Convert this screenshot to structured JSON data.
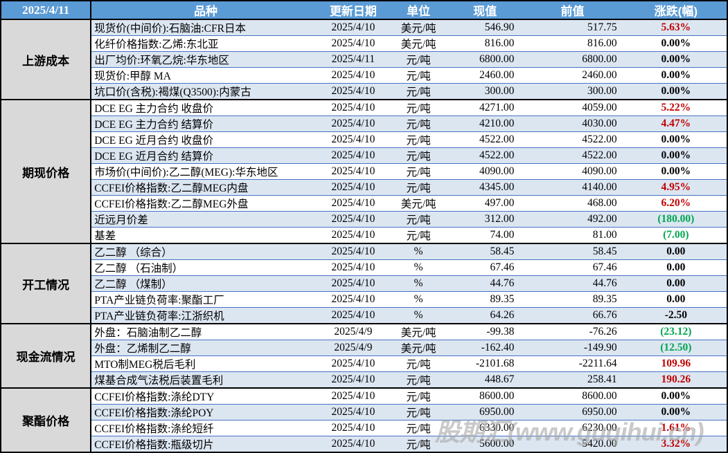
{
  "header": {
    "date": "2025/4/11",
    "columns": [
      "品种",
      "更新日期",
      "单位",
      "现值",
      "前值",
      "涨跌(幅)"
    ]
  },
  "groups": [
    {
      "label": "上游成本",
      "rows": [
        {
          "name": "现货价(中间价):石脑油:CFR日本",
          "date": "2025/4/10",
          "unit": "美元/吨",
          "cur": "546.90",
          "prev": "517.75",
          "chg": "5.63%",
          "chg_color": "red"
        },
        {
          "name": "化纤价格指数:乙烯:东北亚",
          "date": "2025/4/10",
          "unit": "美元/吨",
          "cur": "816.00",
          "prev": "816.00",
          "chg": "0.00%",
          "chg_color": "black"
        },
        {
          "name": "出厂均价:环氧乙烷:华东地区",
          "date": "2025/4/11",
          "unit": "元/吨",
          "cur": "6800.00",
          "prev": "6800.00",
          "chg": "0.00%",
          "chg_color": "black"
        },
        {
          "name": "现货价:甲醇 MA",
          "date": "2025/4/10",
          "unit": "元/吨",
          "cur": "2460.00",
          "prev": "2460.00",
          "chg": "0.00%",
          "chg_color": "black"
        },
        {
          "name": "坑口价(含税):褐煤(Q3500):内蒙古",
          "date": "2025/4/10",
          "unit": "元/吨",
          "cur": "300.00",
          "prev": "300.00",
          "chg": "0.00%",
          "chg_color": "black"
        }
      ]
    },
    {
      "label": "期现价格",
      "rows": [
        {
          "name": "DCE EG 主力合约 收盘价",
          "date": "2025/4/10",
          "unit": "元/吨",
          "cur": "4271.00",
          "prev": "4059.00",
          "chg": "5.22%",
          "chg_color": "red"
        },
        {
          "name": "DCE EG 主力合约 结算价",
          "date": "2025/4/10",
          "unit": "元/吨",
          "cur": "4210.00",
          "prev": "4030.00",
          "chg": "4.47%",
          "chg_color": "red"
        },
        {
          "name": "DCE EG 近月合约 收盘价",
          "date": "2025/4/10",
          "unit": "元/吨",
          "cur": "4522.00",
          "prev": "4522.00",
          "chg": "0.00%",
          "chg_color": "black"
        },
        {
          "name": "DCE EG 近月合约 结算价",
          "date": "2025/4/10",
          "unit": "元/吨",
          "cur": "4522.00",
          "prev": "4522.00",
          "chg": "0.00%",
          "chg_color": "black"
        },
        {
          "name": "市场价(中间价):乙二醇(MEG):华东地区",
          "date": "2025/4/10",
          "unit": "元/吨",
          "cur": "4090.00",
          "prev": "4090.00",
          "chg": "0.00%",
          "chg_color": "black"
        },
        {
          "name": "CCFEI价格指数:乙二醇MEG内盘",
          "date": "2025/4/10",
          "unit": "元/吨",
          "cur": "4345.00",
          "prev": "4140.00",
          "chg": "4.95%",
          "chg_color": "red"
        },
        {
          "name": "CCFEI价格指数:乙二醇MEG外盘",
          "date": "2025/4/10",
          "unit": "美元/吨",
          "cur": "497.00",
          "prev": "468.00",
          "chg": "6.20%",
          "chg_color": "red"
        },
        {
          "name": "近远月价差",
          "date": "2025/4/10",
          "unit": "元/吨",
          "cur": "312.00",
          "prev": "492.00",
          "chg": "(180.00)",
          "chg_color": "green"
        },
        {
          "name": "基差",
          "date": "2025/4/10",
          "unit": "元/吨",
          "cur": "74.00",
          "prev": "81.00",
          "chg": "(7.00)",
          "chg_color": "green"
        }
      ]
    },
    {
      "label": "开工情况",
      "rows": [
        {
          "name": "乙二醇 （综合）",
          "date": "2025/4/10",
          "unit": "%",
          "cur": "58.45",
          "prev": "58.45",
          "chg": "0.00",
          "chg_color": "black"
        },
        {
          "name": "乙二醇 （石油制）",
          "date": "2025/4/10",
          "unit": "%",
          "cur": "67.46",
          "prev": "67.46",
          "chg": "0.00",
          "chg_color": "black"
        },
        {
          "name": "乙二醇 （煤制）",
          "date": "2025/4/10",
          "unit": "%",
          "cur": "44.76",
          "prev": "44.76",
          "chg": "0.00",
          "chg_color": "black"
        },
        {
          "name": "PTA产业链负荷率:聚酯工厂",
          "date": "2025/4/10",
          "unit": "%",
          "cur": "89.35",
          "prev": "89.35",
          "chg": "0.00",
          "chg_color": "black"
        },
        {
          "name": "PTA产业链负荷率:江浙织机",
          "date": "2025/4/10",
          "unit": "%",
          "cur": "64.26",
          "prev": "66.76",
          "chg": "-2.50",
          "chg_color": "black"
        }
      ]
    },
    {
      "label": "现金流情况",
      "rows": [
        {
          "name": "外盘：石脑油制乙二醇",
          "date": "2025/4/9",
          "unit": "美元/吨",
          "cur": "-99.38",
          "prev": "-76.26",
          "chg": "(23.12)",
          "chg_color": "green"
        },
        {
          "name": "外盘：乙烯制乙二醇",
          "date": "2025/4/9",
          "unit": "美元/吨",
          "cur": "-162.40",
          "prev": "-149.90",
          "chg": "(12.50)",
          "chg_color": "green"
        },
        {
          "name": "MTO制MEG税后毛利",
          "date": "2025/4/10",
          "unit": "元/吨",
          "cur": "-2101.68",
          "prev": "-2211.64",
          "chg": "109.96",
          "chg_color": "red"
        },
        {
          "name": "煤基合成气法税后装置毛利",
          "date": "2025/4/10",
          "unit": "元/吨",
          "cur": "448.67",
          "prev": "258.41",
          "chg": "190.26",
          "chg_color": "red"
        }
      ]
    },
    {
      "label": "聚酯价格",
      "rows": [
        {
          "name": "CCFEI价格指数:涤纶DTY",
          "date": "2025/4/10",
          "unit": "元/吨",
          "cur": "8600.00",
          "prev": "8600.00",
          "chg": "0.00%",
          "chg_color": "black"
        },
        {
          "name": "CCFEI价格指数:涤纶POY",
          "date": "2025/4/10",
          "unit": "元/吨",
          "cur": "6950.00",
          "prev": "6950.00",
          "chg": "0.00%",
          "chg_color": "black"
        },
        {
          "name": "CCFEI价格指数:涤纶短纤",
          "date": "2025/4/10",
          "unit": "元/吨",
          "cur": "6330.00",
          "prev": "6230.00",
          "chg": "1.61%",
          "chg_color": "red"
        },
        {
          "name": "CCFEI价格指数:瓶级切片",
          "date": "2025/4/10",
          "unit": "元/吨",
          "cur": "5600.00",
          "prev": "5420.00",
          "chg": "3.32%",
          "chg_color": "red"
        }
      ]
    }
  ],
  "watermark": "股期汇(www.guqihui.cn)",
  "colors": {
    "header_bg": "#5B9BD5",
    "row_alt": "#DCE6F1",
    "category_bg": "#D9D9D9",
    "up_red": "#C00000",
    "down_green": "#00A651",
    "row_line": "#4472C4",
    "border": "#000000"
  }
}
